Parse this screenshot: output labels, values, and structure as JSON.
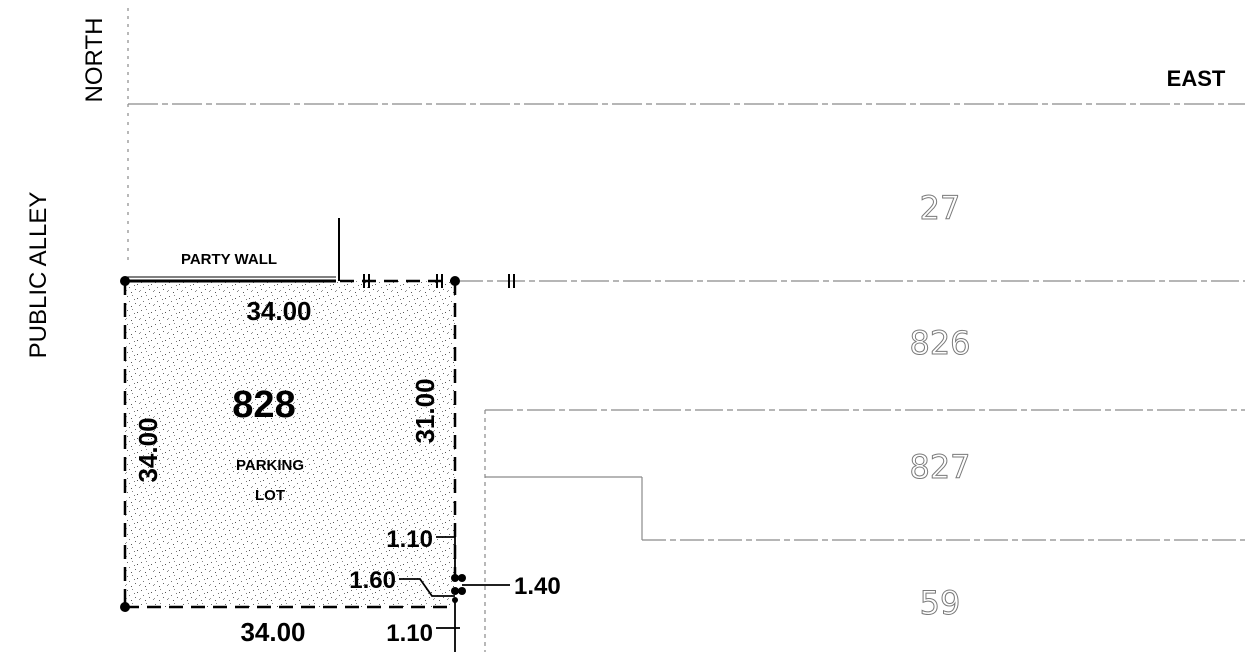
{
  "labels": {
    "north": "NORTH",
    "east": "EAST",
    "public_alley": "PUBLIC ALLEY",
    "party_wall": "PARTY WALL"
  },
  "lots": [
    {
      "id": "27"
    },
    {
      "id": "826"
    },
    {
      "id": "827"
    },
    {
      "id": "59"
    }
  ],
  "parcel": {
    "number": "828",
    "use_line1": "PARKING",
    "use_line2": "LOT"
  },
  "dimensions": {
    "top": "34.00",
    "bottom": "34.00",
    "left": "34.00",
    "right": "31.00",
    "upper_offset": "1.10",
    "mid_offset": "1.60",
    "side_offset": "1.40",
    "lower_offset": "1.10"
  },
  "colors": {
    "ink": "#000000",
    "lot_line": "#8a8a8a",
    "stipple": "#5a5a5a"
  }
}
